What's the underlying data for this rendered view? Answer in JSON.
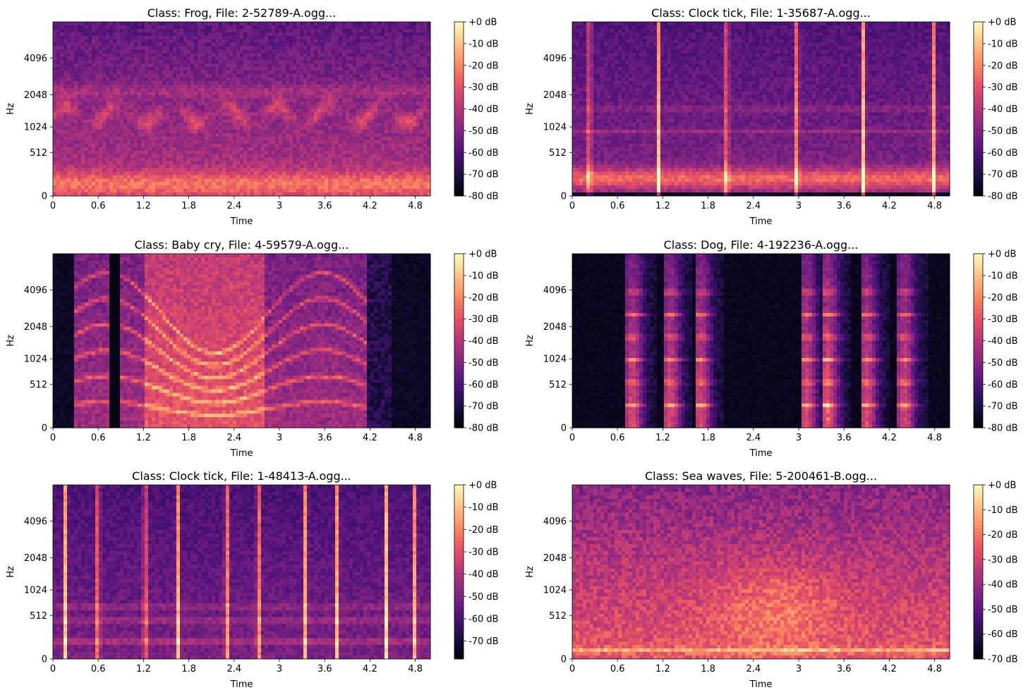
{
  "chart_data": [
    {
      "type": "heatmap",
      "title": "Class: Frog, File: 2-52789-A.ogg...",
      "xlabel": "Time",
      "ylabel": "Hz",
      "xlim": [
        0,
        5
      ],
      "ylim": [
        0,
        8192
      ],
      "x_ticks": [
        "0",
        "0.6",
        "1.2",
        "1.8",
        "2.4",
        "3",
        "3.6",
        "4.2",
        "4.8"
      ],
      "y_ticks": [
        "0",
        "512",
        "1024",
        "2048",
        "4096"
      ],
      "colorbar": {
        "ticks": [
          "+0 dB",
          "-10 dB",
          "-20 dB",
          "-30 dB",
          "-40 dB",
          "-50 dB",
          "-60 dB",
          "-70 dB",
          "-80 dB"
        ],
        "range_db": [
          -80,
          0
        ]
      },
      "pattern": "frog"
    },
    {
      "type": "heatmap",
      "title": "Class: Clock tick, File: 1-35687-A.ogg...",
      "xlabel": "Time",
      "ylabel": "Hz",
      "xlim": [
        0,
        5
      ],
      "ylim": [
        0,
        8192
      ],
      "x_ticks": [
        "0",
        "0.6",
        "1.2",
        "1.8",
        "2.4",
        "3",
        "3.6",
        "4.2",
        "4.8"
      ],
      "y_ticks": [
        "0",
        "512",
        "1024",
        "2048",
        "4096"
      ],
      "colorbar": {
        "ticks": [
          "+0 dB",
          "-10 dB",
          "-20 dB",
          "-30 dB",
          "-40 dB",
          "-50 dB",
          "-60 dB",
          "-70 dB",
          "-80 dB"
        ],
        "range_db": [
          -80,
          0
        ]
      },
      "pattern": "clock1"
    },
    {
      "type": "heatmap",
      "title": "Class: Baby cry, File: 4-59579-A.ogg...",
      "xlabel": "Time",
      "ylabel": "Hz",
      "xlim": [
        0,
        5
      ],
      "ylim": [
        0,
        8192
      ],
      "x_ticks": [
        "0",
        "0.6",
        "1.2",
        "1.8",
        "2.4",
        "3",
        "3.6",
        "4.2",
        "4.8"
      ],
      "y_ticks": [
        "0",
        "512",
        "1024",
        "2048",
        "4096"
      ],
      "colorbar": {
        "ticks": [
          "+0 dB",
          "-10 dB",
          "-20 dB",
          "-30 dB",
          "-40 dB",
          "-50 dB",
          "-60 dB",
          "-70 dB",
          "-80 dB"
        ],
        "range_db": [
          -80,
          0
        ]
      },
      "pattern": "baby"
    },
    {
      "type": "heatmap",
      "title": "Class: Dog, File: 4-192236-A.ogg...",
      "xlabel": "Time",
      "ylabel": "Hz",
      "xlim": [
        0,
        5
      ],
      "ylim": [
        0,
        8192
      ],
      "x_ticks": [
        "0",
        "0.6",
        "1.2",
        "1.8",
        "2.4",
        "3",
        "3.6",
        "4.2",
        "4.8"
      ],
      "y_ticks": [
        "0",
        "512",
        "1024",
        "2048",
        "4096"
      ],
      "colorbar": {
        "ticks": [
          "+0 dB",
          "-10 dB",
          "-20 dB",
          "-30 dB",
          "-40 dB",
          "-50 dB",
          "-60 dB",
          "-70 dB",
          "-80 dB"
        ],
        "range_db": [
          -80,
          0
        ]
      },
      "pattern": "dog"
    },
    {
      "type": "heatmap",
      "title": "Class: Clock tick, File: 1-48413-A.ogg...",
      "xlabel": "Time",
      "ylabel": "Hz",
      "xlim": [
        0,
        5
      ],
      "ylim": [
        0,
        8192
      ],
      "x_ticks": [
        "0",
        "0.6",
        "1.2",
        "1.8",
        "2.4",
        "3",
        "3.6",
        "4.2",
        "4.8"
      ],
      "y_ticks": [
        "0",
        "512",
        "1024",
        "2048",
        "4096"
      ],
      "colorbar": {
        "ticks": [
          "+0 dB",
          "-10 dB",
          "-20 dB",
          "-30 dB",
          "-40 dB",
          "-50 dB",
          "-60 dB",
          "-70 dB"
        ],
        "range_db": [
          -78,
          0
        ]
      },
      "pattern": "clock2"
    },
    {
      "type": "heatmap",
      "title": "Class: Sea waves, File: 5-200461-B.ogg...",
      "xlabel": "Time",
      "ylabel": "Hz",
      "xlim": [
        0,
        5
      ],
      "ylim": [
        0,
        8192
      ],
      "x_ticks": [
        "0",
        "0.6",
        "1.2",
        "1.8",
        "2.4",
        "3",
        "3.6",
        "4.2",
        "4.8"
      ],
      "y_ticks": [
        "0",
        "512",
        "1024",
        "2048",
        "4096"
      ],
      "colorbar": {
        "ticks": [
          "+0 dB",
          "-10 dB",
          "-20 dB",
          "-30 dB",
          "-40 dB",
          "-50 dB",
          "-60 dB",
          "-70 dB"
        ],
        "range_db": [
          -70,
          0
        ]
      },
      "pattern": "sea"
    }
  ]
}
